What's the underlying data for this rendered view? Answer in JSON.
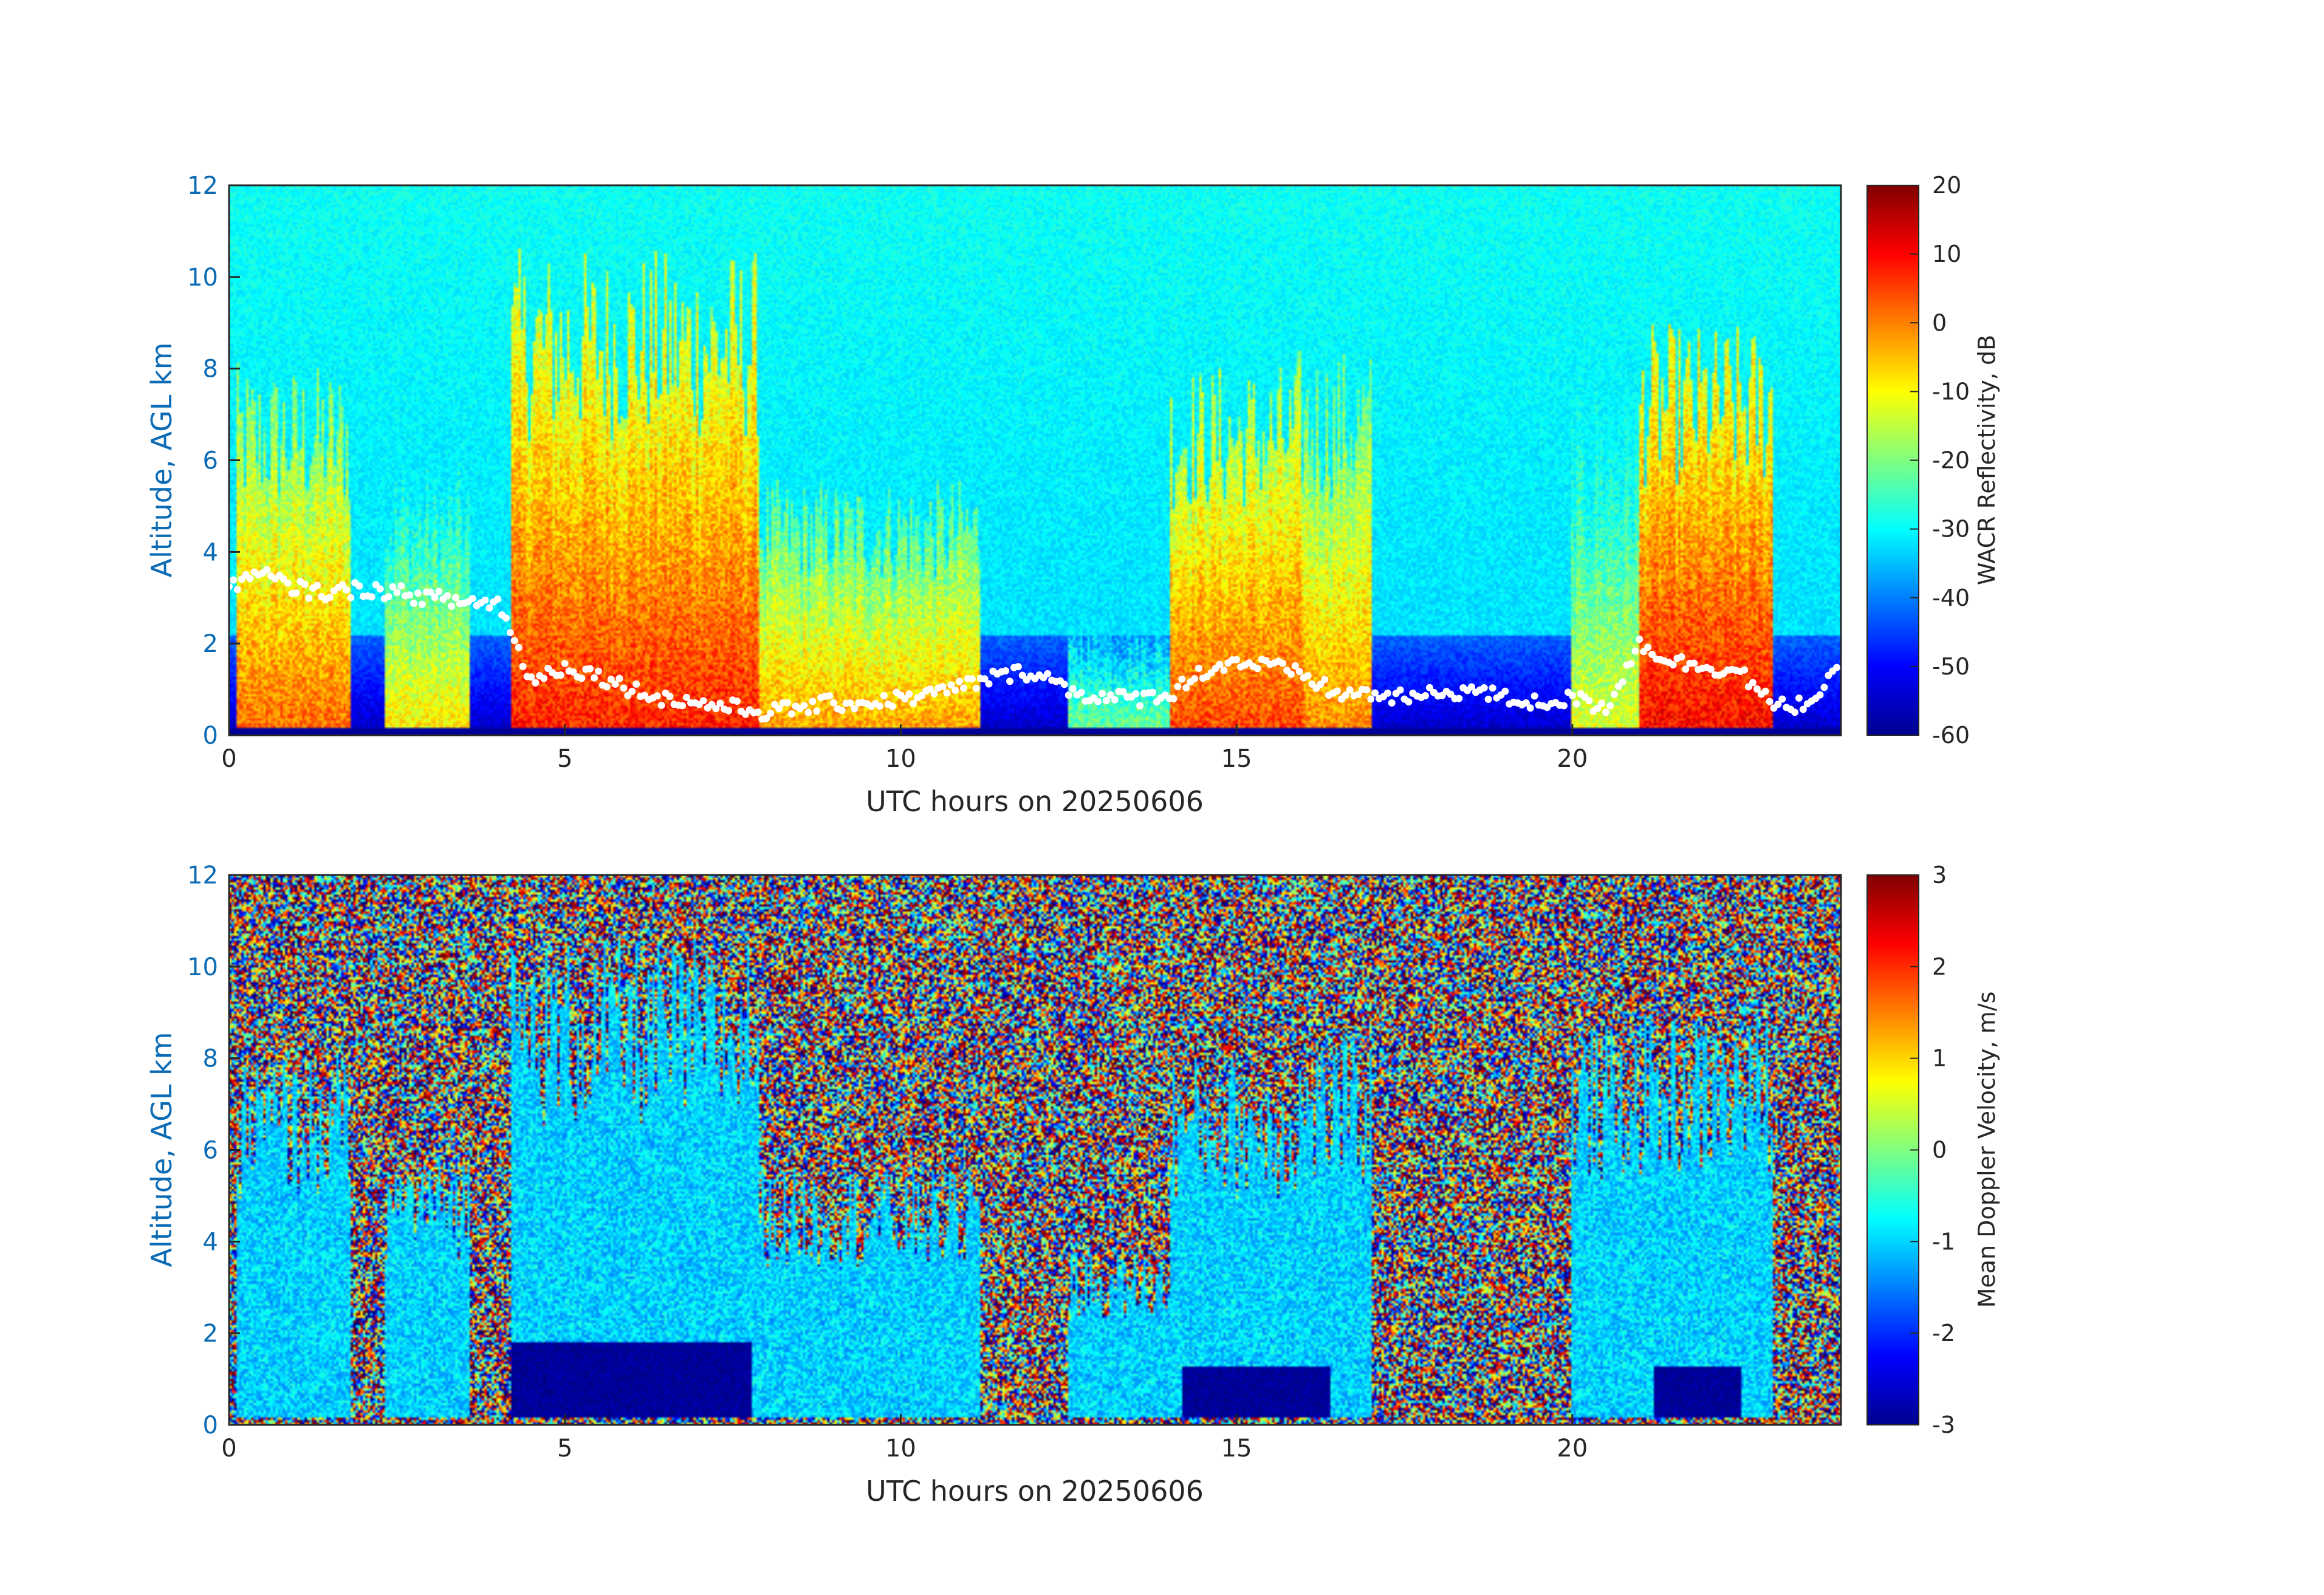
{
  "chart_data": [
    {
      "type": "heatmap",
      "title": "",
      "xlabel": "UTC hours on 20250606",
      "ylabel": "Altitude, AGL km",
      "xlim": [
        0,
        24
      ],
      "ylim": [
        0,
        12
      ],
      "xticks": [
        0,
        5,
        10,
        15,
        20
      ],
      "yticks": [
        0,
        2,
        4,
        6,
        8,
        10,
        12
      ],
      "colormap": "jet",
      "colorbar": {
        "label": "WACR Reflectivity, dB",
        "range": [
          -60,
          20
        ],
        "ticks": [
          -60,
          -50,
          -40,
          -30,
          -20,
          -10,
          0,
          10,
          20
        ]
      },
      "background_value": -33,
      "near_surface_value": -55,
      "cloud_features": [
        {
          "x_range": [
            0.1,
            1.8
          ],
          "top_km": 6.5,
          "value": -8
        },
        {
          "x_range": [
            2.3,
            3.6
          ],
          "top_km": 4.8,
          "value": -18
        },
        {
          "x_range": [
            4.2,
            7.9
          ],
          "top_km": 8.5,
          "value": -2
        },
        {
          "x_range": [
            7.9,
            11.2
          ],
          "top_km": 4.5,
          "value": -12
        },
        {
          "x_range": [
            12.5,
            14.0
          ],
          "top_km": 3.0,
          "value": -30
        },
        {
          "x_range": [
            14.0,
            16.0
          ],
          "top_km": 6.5,
          "value": -5
        },
        {
          "x_range": [
            15.9,
            17.0
          ],
          "top_km": 6.8,
          "value": -10
        },
        {
          "x_range": [
            20.0,
            21.2
          ],
          "top_km": 7.0,
          "value": -22
        },
        {
          "x_range": [
            21.0,
            23.0
          ],
          "top_km": 7.2,
          "value": 0
        }
      ],
      "cloud_base_overlay": {
        "color": "#ffffff",
        "points": [
          [
            0.0,
            3.3
          ],
          [
            0.5,
            3.5
          ],
          [
            1.0,
            3.2
          ],
          [
            1.5,
            3.1
          ],
          [
            2.0,
            3.2
          ],
          [
            2.5,
            3.1
          ],
          [
            3.0,
            3.0
          ],
          [
            3.5,
            2.9
          ],
          [
            4.0,
            2.9
          ],
          [
            4.5,
            1.2
          ],
          [
            5.0,
            1.5
          ],
          [
            5.5,
            1.3
          ],
          [
            6.0,
            1.0
          ],
          [
            6.5,
            0.8
          ],
          [
            7.0,
            0.7
          ],
          [
            7.5,
            0.6
          ],
          [
            8.0,
            0.5
          ],
          [
            8.5,
            0.6
          ],
          [
            9.0,
            0.7
          ],
          [
            9.5,
            0.7
          ],
          [
            10.0,
            0.8
          ],
          [
            10.5,
            0.9
          ],
          [
            11.0,
            1.1
          ],
          [
            11.5,
            1.3
          ],
          [
            12.0,
            1.4
          ],
          [
            12.5,
            1.0
          ],
          [
            13.0,
            0.8
          ],
          [
            13.5,
            0.8
          ],
          [
            14.0,
            0.9
          ],
          [
            14.5,
            1.4
          ],
          [
            15.0,
            1.6
          ],
          [
            15.5,
            1.5
          ],
          [
            16.0,
            1.3
          ],
          [
            16.5,
            0.9
          ],
          [
            17.0,
            0.9
          ],
          [
            17.5,
            0.8
          ],
          [
            18.0,
            0.9
          ],
          [
            18.5,
            1.0
          ],
          [
            19.0,
            0.8
          ],
          [
            19.5,
            0.7
          ],
          [
            20.0,
            0.8
          ],
          [
            20.5,
            0.6
          ],
          [
            21.0,
            2.0
          ],
          [
            21.5,
            1.6
          ],
          [
            22.0,
            1.5
          ],
          [
            22.5,
            1.4
          ],
          [
            23.0,
            0.6
          ],
          [
            23.5,
            0.7
          ],
          [
            24.0,
            1.4
          ]
        ]
      }
    },
    {
      "type": "heatmap",
      "title": "",
      "xlabel": "UTC hours on 20250606",
      "ylabel": "Altitude, AGL km",
      "xlim": [
        0,
        24
      ],
      "ylim": [
        0,
        12
      ],
      "xticks": [
        0,
        5,
        10,
        15,
        20
      ],
      "yticks": [
        0,
        2,
        4,
        6,
        8,
        10,
        12
      ],
      "colormap": "jet",
      "colorbar": {
        "label": "Mean Doppler Velocity, m/s",
        "range": [
          -3,
          3
        ],
        "ticks": [
          -3,
          -2,
          -1,
          0,
          1,
          2,
          3
        ]
      },
      "background": "random noise",
      "cloud_value": -1,
      "precip_features": [
        {
          "x_range": [
            4.2,
            7.8
          ],
          "top_km": 1.8,
          "value": -3
        },
        {
          "x_range": [
            14.2,
            16.4
          ],
          "top_km": 1.3,
          "value": -3
        },
        {
          "x_range": [
            21.2,
            22.5
          ],
          "top_km": 1.3,
          "value": -3
        }
      ]
    }
  ]
}
